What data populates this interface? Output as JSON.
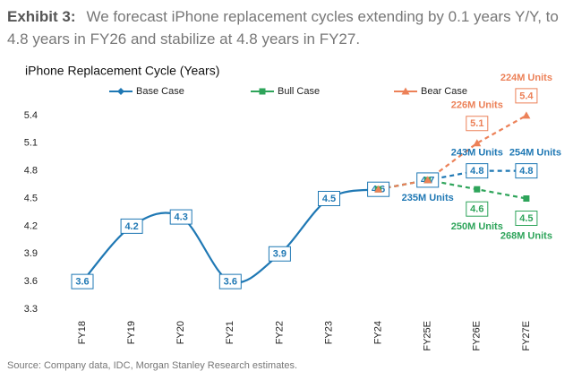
{
  "exhibit_label": "Exhibit 3:",
  "headline": "We forecast iPhone replacement cycles extending by 0.1 years Y/Y, to 4.8 years in FY26 and stabilize at 4.8 years in FY27.",
  "source": "Source: Company data, IDC, Morgan Stanley Research estimates.",
  "chart_data": {
    "type": "line",
    "title": "iPhone Replacement Cycle (Years)",
    "categories": [
      "FY18",
      "FY19",
      "FY20",
      "FY21",
      "FY22",
      "FY23",
      "FY24",
      "FY25E",
      "FY26E",
      "FY27E"
    ],
    "forecast_from": "FY24",
    "ylim": [
      3.3,
      5.7
    ],
    "yticks": [
      3.3,
      3.6,
      3.9,
      4.2,
      4.5,
      4.8,
      5.1,
      5.4
    ],
    "grid": false,
    "legend": "top",
    "series": [
      {
        "name": "Base Case",
        "color": "#1f78b4",
        "marker": "diamond",
        "labeled_from": "FY18",
        "values": [
          3.6,
          4.2,
          4.3,
          3.6,
          3.9,
          4.5,
          4.6,
          4.7,
          4.8,
          4.8
        ],
        "annotations": [
          {
            "category": "FY25E",
            "text": "235M Units",
            "position": "below"
          },
          {
            "category": "FY26E",
            "text": "243M Units",
            "position": "above"
          },
          {
            "category": "FY27E",
            "text": "254M Units",
            "position": "above"
          }
        ]
      },
      {
        "name": "Bull Case",
        "color": "#2ea45a",
        "marker": "square",
        "labeled_from": "FY26E",
        "values": [
          null,
          null,
          null,
          null,
          null,
          null,
          4.6,
          4.7,
          4.6,
          4.5
        ],
        "annotations": [
          {
            "category": "FY26E",
            "text": "250M Units",
            "position": "below"
          },
          {
            "category": "FY27E",
            "text": "268M Units",
            "position": "below"
          }
        ]
      },
      {
        "name": "Bear Case",
        "color": "#ec8158",
        "marker": "triangle",
        "labeled_from": "FY26E",
        "values": [
          null,
          null,
          null,
          null,
          null,
          null,
          4.6,
          4.7,
          5.1,
          5.4
        ],
        "annotations": [
          {
            "category": "FY26E",
            "text": "226M Units",
            "position": "above"
          },
          {
            "category": "FY27E",
            "text": "224M Units",
            "position": "above"
          }
        ]
      }
    ]
  }
}
